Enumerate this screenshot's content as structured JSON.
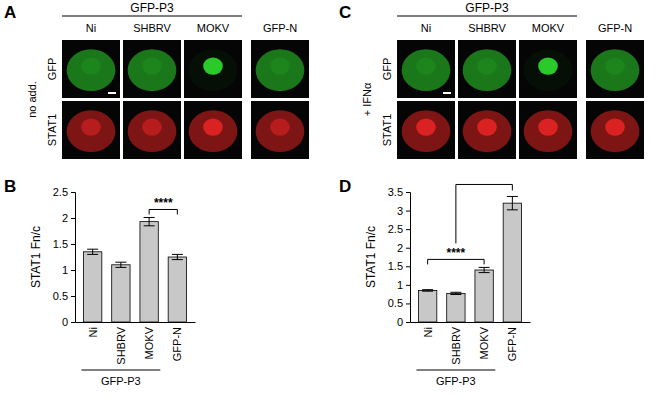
{
  "images": [
    {
      "panel": "A",
      "condition": "no add.",
      "group": {
        "label": "GFP-P3",
        "from": 0,
        "to": 2
      },
      "columns": [
        "Ni",
        "SHBRV",
        "MOKV",
        "GFP-N"
      ],
      "rows": [
        "GFP",
        "STAT1"
      ]
    },
    {
      "panel": "C",
      "condition": "+ IFNα",
      "group": {
        "label": "GFP-P3",
        "from": 0,
        "to": 2
      },
      "columns": [
        "Ni",
        "SHBRV",
        "MOKV",
        "GFP-N"
      ],
      "rows": [
        "GFP",
        "STAT1"
      ]
    }
  ],
  "chart_data": [
    {
      "type": "bar",
      "panel": "B",
      "y_label": "STAT1 Fn/c",
      "categories": [
        "Ni",
        "SHBRV",
        "MOKV",
        "GFP-N"
      ],
      "values": [
        1.35,
        1.1,
        1.93,
        1.25
      ],
      "errors": [
        0.05,
        0.05,
        0.08,
        0.05
      ],
      "color": "#c8c8c8",
      "ylim": [
        0,
        2.5
      ],
      "yticks": [
        0,
        0.5,
        1,
        1.5,
        2,
        2.5
      ],
      "group": {
        "label": "GFP-P3",
        "from": 0,
        "to": 2
      },
      "annotations": [
        {
          "text": "****",
          "from": 2,
          "to": 3
        }
      ]
    },
    {
      "type": "bar",
      "panel": "D",
      "y_label": "STAT1 Fn/c",
      "categories": [
        "Ni",
        "SHBRV",
        "MOKV",
        "GFP-N"
      ],
      "values": [
        0.85,
        0.77,
        1.4,
        3.2
      ],
      "errors": [
        0.02,
        0.03,
        0.07,
        0.18
      ],
      "color": "#c8c8c8",
      "ylim": [
        0,
        3.5
      ],
      "yticks": [
        0,
        0.5,
        1,
        1.5,
        2,
        2.5,
        3,
        3.5
      ],
      "group": {
        "label": "GFP-P3",
        "from": 0,
        "to": 2
      },
      "annotations": [
        {
          "text": "****",
          "from": 0,
          "to": 2
        },
        {
          "from": 1,
          "to": 3
        }
      ]
    }
  ]
}
